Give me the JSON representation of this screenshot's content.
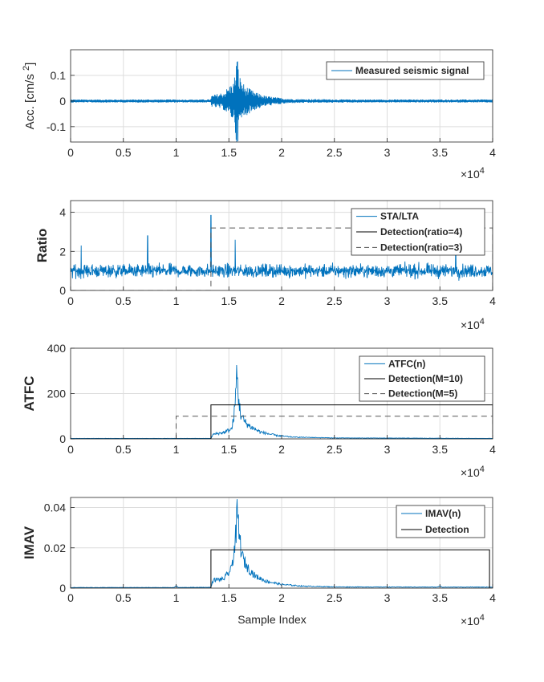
{
  "figure": {
    "xlabel": "Sample Index",
    "exponent_base": "×10",
    "exponent_power": "4"
  },
  "colors": {
    "signal": "#0072BD",
    "detection": "#000000",
    "detection_dashed": "#555555",
    "grid": "#dddddd"
  },
  "chart_data": [
    {
      "type": "line",
      "ylabel": "Acc. [cm/s ]",
      "ylabel_sup": "2",
      "x_tick_labels": [
        "0",
        "0.5",
        "1",
        "1.5",
        "2",
        "2.5",
        "3",
        "3.5",
        "4"
      ],
      "x_ticks": [
        0,
        5000,
        10000,
        15000,
        20000,
        25000,
        30000,
        35000,
        40000
      ],
      "y_tick_labels": [
        "-0.1",
        "0",
        "0.1"
      ],
      "y_ticks": [
        -0.1,
        0,
        0.1
      ],
      "xlim": [
        0,
        40000
      ],
      "ylim": [
        -0.16,
        0.2
      ],
      "grid": true,
      "legend": "top-right",
      "series": [
        {
          "name": "Measured seismic signal",
          "style": "solid",
          "envelope": {
            "x": [
              0,
              13300,
              13350,
              14500,
              15500,
              15750,
              15850,
              16000,
              16500,
              17500,
              18500,
              20000,
              21000,
              24000,
              26000,
              30000,
              40000
            ],
            "amp": [
              0.006,
              0.006,
              0.022,
              0.035,
              0.08,
              0.19,
              0.16,
              0.1,
              0.06,
              0.035,
              0.02,
              0.012,
              0.008,
              0.007,
              0.006,
              0.006,
              0.006
            ]
          }
        }
      ]
    },
    {
      "type": "line",
      "ylabel": "Ratio",
      "x_tick_labels": [
        "0",
        "0.5",
        "1",
        "1.5",
        "2",
        "2.5",
        "3",
        "3.5",
        "4"
      ],
      "x_ticks": [
        0,
        5000,
        10000,
        15000,
        20000,
        25000,
        30000,
        35000,
        40000
      ],
      "y_tick_labels": [
        "0",
        "2",
        "4"
      ],
      "y_ticks": [
        0,
        2,
        4
      ],
      "xlim": [
        0,
        40000
      ],
      "ylim": [
        0,
        4.6
      ],
      "grid": true,
      "legend": "top-right",
      "series": [
        {
          "name": "STA/LTA",
          "style": "solid",
          "noise": {
            "base": 1.0,
            "amp": 0.55
          },
          "spikes": [
            {
              "x": 1000,
              "y": 2.3
            },
            {
              "x": 7300,
              "y": 2.8
            },
            {
              "x": 13300,
              "y": 3.85
            },
            {
              "x": 15600,
              "y": 2.6
            },
            {
              "x": 36500,
              "y": 2.0
            }
          ]
        },
        {
          "name": "Detection(ratio=4)",
          "style": "solid"
        },
        {
          "name": "Detection(ratio=3)",
          "style": "dashed",
          "step": {
            "x_on": 13300,
            "x_off": 40000,
            "level": 3.2
          }
        }
      ]
    },
    {
      "type": "line",
      "ylabel": "ATFC",
      "x_tick_labels": [
        "0",
        "0.5",
        "1",
        "1.5",
        "2",
        "2.5",
        "3",
        "3.5",
        "4"
      ],
      "x_ticks": [
        0,
        5000,
        10000,
        15000,
        20000,
        25000,
        30000,
        35000,
        40000
      ],
      "y_tick_labels": [
        "0",
        "200",
        "400"
      ],
      "y_ticks": [
        0,
        200,
        400
      ],
      "xlim": [
        0,
        40000
      ],
      "ylim": [
        0,
        400
      ],
      "grid": true,
      "legend": "top-right",
      "series": [
        {
          "name": "ATFC(n)",
          "style": "solid",
          "envelope": {
            "x": [
              0,
              13300,
              13500,
              14500,
              15300,
              15600,
              15750,
              15900,
              16100,
              16500,
              17000,
              18000,
              19500,
              21000,
              25000,
              40000
            ],
            "amp": [
              2,
              2,
              20,
              28,
              45,
              150,
              300,
              190,
              110,
              75,
              55,
              30,
              15,
              8,
              4,
              2
            ]
          }
        },
        {
          "name": "Detection(M=10)",
          "style": "solid",
          "step": {
            "x_on": 13300,
            "x_off": 40000,
            "level": 150
          }
        },
        {
          "name": "Detection(M=5)",
          "style": "dashed",
          "step": {
            "x_on": 10000,
            "x_off": 40000,
            "level": 100
          }
        }
      ]
    },
    {
      "type": "line",
      "ylabel": "IMAV",
      "x_tick_labels": [
        "0",
        "0.5",
        "1",
        "1.5",
        "2",
        "2.5",
        "3",
        "3.5",
        "4"
      ],
      "x_ticks": [
        0,
        5000,
        10000,
        15000,
        20000,
        25000,
        30000,
        35000,
        40000
      ],
      "y_tick_labels": [
        "0",
        "0.02",
        "0.04"
      ],
      "y_ticks": [
        0,
        0.02,
        0.04
      ],
      "xlim": [
        0,
        40000
      ],
      "ylim": [
        0,
        0.045
      ],
      "grid": true,
      "legend": "top-right",
      "series": [
        {
          "name": "IMAV(n)",
          "style": "solid",
          "envelope": {
            "x": [
              0,
              9800,
              10000,
              10200,
              13300,
              13500,
              14500,
              15200,
              15600,
              15800,
              16000,
              16300,
              16800,
              17500,
              18500,
              20000,
              22000,
              25000,
              34800,
              35000,
              35200,
              40000
            ],
            "amp": [
              0.0003,
              0.0003,
              0.0012,
              0.0003,
              0.0004,
              0.004,
              0.0045,
              0.009,
              0.022,
              0.037,
              0.025,
              0.015,
              0.01,
              0.006,
              0.0035,
              0.0018,
              0.001,
              0.0006,
              0.0005,
              0.0013,
              0.0005,
              0.0005
            ]
          }
        },
        {
          "name": "Detection",
          "style": "solid",
          "step": {
            "x_on": 13300,
            "x_off": 39700,
            "level": 0.019
          }
        }
      ]
    }
  ]
}
